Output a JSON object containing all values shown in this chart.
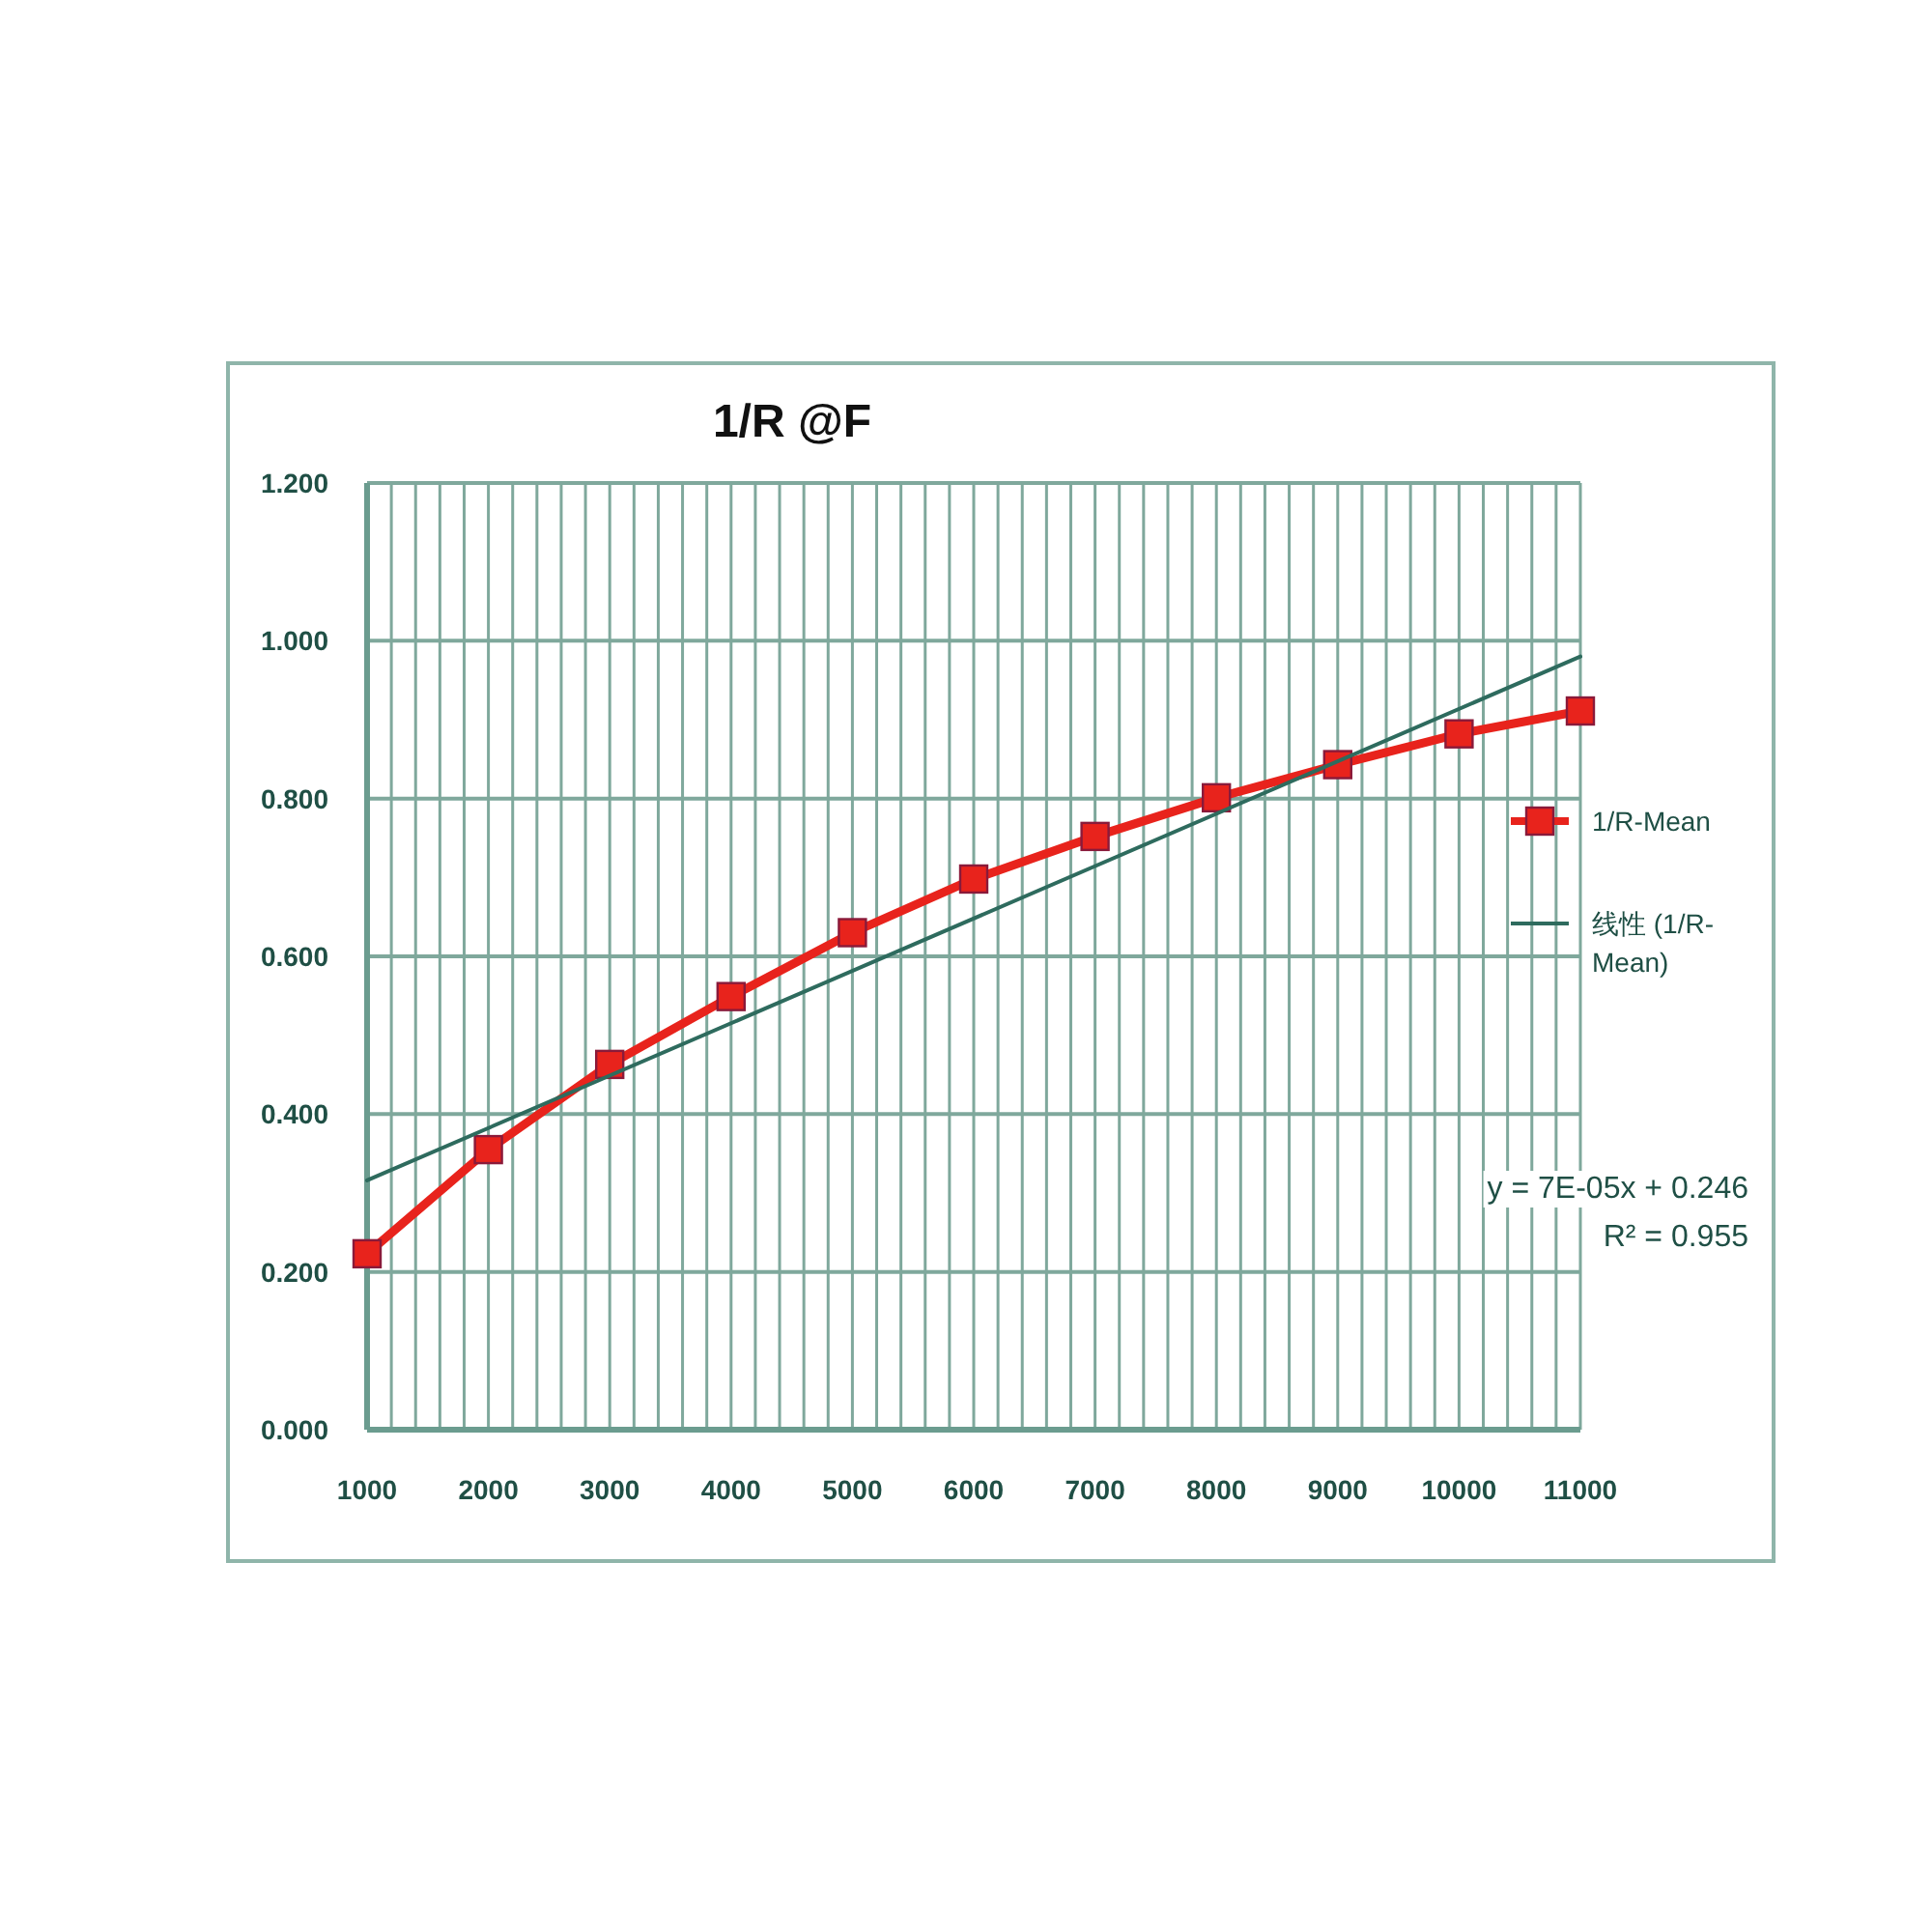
{
  "chart_data": {
    "type": "line",
    "title": "1/R @F",
    "x": [
      1000,
      2000,
      3000,
      4000,
      5000,
      6000,
      7000,
      8000,
      9000,
      10000,
      11000
    ],
    "series": [
      {
        "name": "1/R-Mean",
        "color": "#e8231c",
        "marker": "square",
        "values": [
          0.223,
          0.355,
          0.463,
          0.549,
          0.63,
          0.698,
          0.752,
          0.801,
          0.843,
          0.882,
          0.911
        ]
      },
      {
        "name": "线性 (1/R-Mean)",
        "color": "#2e6b5e",
        "marker": "none",
        "x": [
          1000,
          11000
        ],
        "values": [
          0.316,
          0.98
        ]
      }
    ],
    "xlim": [
      1000,
      11000
    ],
    "xticks": [
      1000,
      {
        "value": 1200,
        "label": null
      },
      {
        "value": 1400,
        "label": null
      },
      {
        "value": 1600,
        "label": null
      },
      {
        "value": 1800,
        "label": null
      },
      2000,
      {
        "value": 2200,
        "label": null
      },
      {
        "value": 2400,
        "label": null
      },
      {
        "value": 2600,
        "label": null
      },
      {
        "value": 2800,
        "label": null
      },
      3000,
      {
        "value": 3200,
        "label": null
      },
      {
        "value": 3400,
        "label": null
      },
      {
        "value": 3600,
        "label": null
      },
      {
        "value": 3800,
        "label": null
      },
      4000,
      {
        "value": 4200,
        "label": null
      },
      {
        "value": 4400,
        "label": null
      },
      {
        "value": 4600,
        "label": null
      },
      {
        "value": 4800,
        "label": null
      },
      5000,
      {
        "value": 5200,
        "label": null
      },
      {
        "value": 5400,
        "label": null
      },
      {
        "value": 5600,
        "label": null
      },
      {
        "value": 5800,
        "label": null
      },
      6000,
      {
        "value": 6200,
        "label": null
      },
      {
        "value": 6400,
        "label": null
      },
      {
        "value": 6600,
        "label": null
      },
      {
        "value": 6800,
        "label": null
      },
      7000,
      {
        "value": 7200,
        "label": null
      },
      {
        "value": 7400,
        "label": null
      },
      {
        "value": 7600,
        "label": null
      },
      {
        "value": 7800,
        "label": null
      },
      8000,
      {
        "value": 8200,
        "label": null
      },
      {
        "value": 8400,
        "label": null
      },
      {
        "value": 8600,
        "label": null
      },
      {
        "value": 8800,
        "label": null
      },
      9000,
      {
        "value": 9200,
        "label": null
      },
      {
        "value": 9400,
        "label": null
      },
      {
        "value": 9600,
        "label": null
      },
      {
        "value": 9800,
        "label": null
      },
      10000,
      {
        "value": 10200,
        "label": null
      },
      {
        "value": 10400,
        "label": null
      },
      {
        "value": 10600,
        "label": null
      },
      {
        "value": 10800,
        "label": null
      },
      11000
    ],
    "ylim": [
      0,
      1.2
    ],
    "yticks": [
      {
        "value": 0,
        "label": "0.000"
      },
      {
        "value": 0.2,
        "label": "0.200"
      },
      {
        "value": 0.4,
        "label": "0.400"
      },
      {
        "value": 0.6,
        "label": "0.600"
      },
      {
        "value": 0.8,
        "label": "0.800"
      },
      {
        "value": 1.0,
        "label": "1.000"
      },
      {
        "value": 1.2,
        "label": "1.200"
      }
    ],
    "grid": true,
    "legend": "right",
    "annotations": [
      "y = 7E-05x + 0.246",
      "R² = 0.955"
    ]
  }
}
